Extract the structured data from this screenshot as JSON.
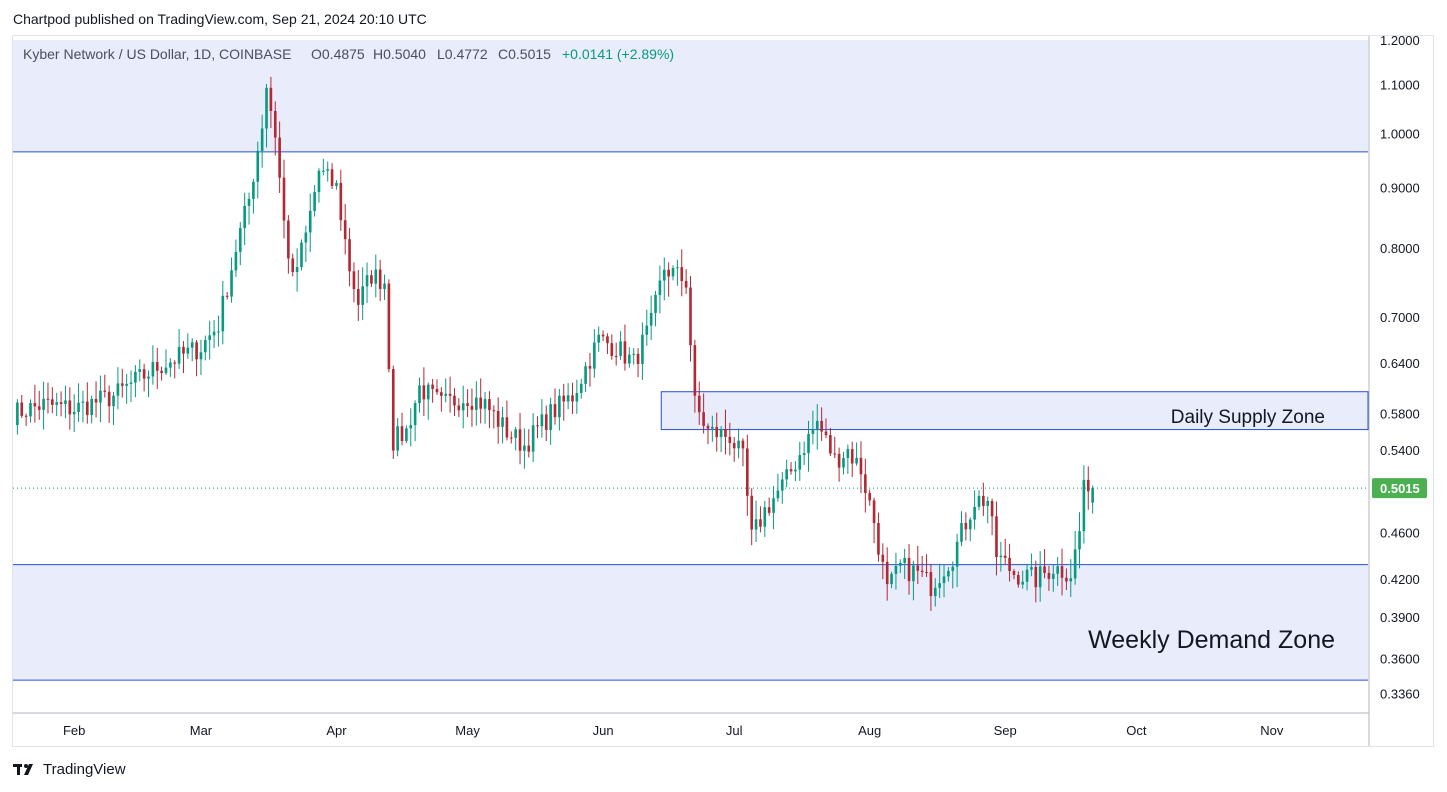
{
  "header": {
    "published": "Chartpod published on TradingView.com, Sep 21, 2024 20:10 UTC"
  },
  "legend": {
    "symbol": "Kyber Network / US Dollar, 1D, COINBASE",
    "open": "O0.4875",
    "high": "H0.5040",
    "low": "L0.4772",
    "close": "C0.5015",
    "change": "+0.0141 (+2.89%)"
  },
  "footer": {
    "brand": "TradingView"
  },
  "colors": {
    "up": "#089981",
    "down": "#b22833",
    "zone_fill": "#e8ecfb",
    "zone_line": "#2a4fd6",
    "price_tag": "#4caf50",
    "axis_text": "#131722"
  },
  "chart_data": {
    "type": "candlestick",
    "title": "Kyber Network / US Dollar, 1D, COINBASE",
    "scale": "log",
    "ylim": [
      0.33,
      1.2
    ],
    "y_ticks": [
      "1.2000",
      "1.1000",
      "1.0000",
      "0.9000",
      "0.8000",
      "0.7000",
      "0.6400",
      "0.5800",
      "0.5400",
      "0.4600",
      "0.4200",
      "0.3900",
      "0.3600",
      "0.3360"
    ],
    "x_ticks": [
      "Feb",
      "Mar",
      "Apr",
      "May",
      "Jun",
      "Jul",
      "Aug",
      "Sep",
      "Oct",
      "Nov"
    ],
    "x_range": [
      "2024-01-18",
      "2024-11-23"
    ],
    "last_price": "0.5015",
    "last_price_value": 0.5015,
    "zones": [
      {
        "label": "",
        "top": 1.2,
        "bottom": 0.965
      },
      {
        "label": "Daily Supply Zone",
        "top": 0.605,
        "bottom": 0.562,
        "start": "2024-06-15"
      },
      {
        "label": "Weekly Demand Zone",
        "top": 0.432,
        "bottom": 0.345
      }
    ],
    "anchors": [
      [
        "2024-01-18",
        0.58
      ],
      [
        "2024-01-25",
        0.59
      ],
      [
        "2024-02-01",
        0.585
      ],
      [
        "2024-02-10",
        0.6
      ],
      [
        "2024-02-20",
        0.635
      ],
      [
        "2024-03-01",
        0.66
      ],
      [
        "2024-03-05",
        0.69
      ],
      [
        "2024-03-09",
        0.8
      ],
      [
        "2024-03-12",
        0.88
      ],
      [
        "2024-03-15",
        1.02
      ],
      [
        "2024-03-16",
        1.1
      ],
      [
        "2024-03-18",
        1.0
      ],
      [
        "2024-03-20",
        0.84
      ],
      [
        "2024-03-22",
        0.75
      ],
      [
        "2024-03-25",
        0.82
      ],
      [
        "2024-03-28",
        0.93
      ],
      [
        "2024-04-01",
        0.9
      ],
      [
        "2024-04-04",
        0.77
      ],
      [
        "2024-04-06",
        0.72
      ],
      [
        "2024-04-09",
        0.76
      ],
      [
        "2024-04-12",
        0.75
      ],
      [
        "2024-04-14",
        0.55
      ],
      [
        "2024-04-17",
        0.56
      ],
      [
        "2024-04-20",
        0.61
      ],
      [
        "2024-04-25",
        0.59
      ],
      [
        "2024-05-01",
        0.6
      ],
      [
        "2024-05-05",
        0.59
      ],
      [
        "2024-05-10",
        0.56
      ],
      [
        "2024-05-14",
        0.545
      ],
      [
        "2024-05-20",
        0.58
      ],
      [
        "2024-05-25",
        0.6
      ],
      [
        "2024-05-31",
        0.67
      ],
      [
        "2024-06-04",
        0.66
      ],
      [
        "2024-06-08",
        0.64
      ],
      [
        "2024-06-12",
        0.69
      ],
      [
        "2024-06-15",
        0.77
      ],
      [
        "2024-06-20",
        0.75
      ],
      [
        "2024-06-22",
        0.59
      ],
      [
        "2024-06-25",
        0.56
      ],
      [
        "2024-06-30",
        0.555
      ],
      [
        "2024-07-03",
        0.53
      ],
      [
        "2024-07-05",
        0.455
      ],
      [
        "2024-07-08",
        0.48
      ],
      [
        "2024-07-13",
        0.51
      ],
      [
        "2024-07-17",
        0.545
      ],
      [
        "2024-07-20",
        0.57
      ],
      [
        "2024-07-24",
        0.53
      ],
      [
        "2024-07-27",
        0.54
      ],
      [
        "2024-07-30",
        0.52
      ],
      [
        "2024-08-02",
        0.47
      ],
      [
        "2024-08-05",
        0.41
      ],
      [
        "2024-08-08",
        0.43
      ],
      [
        "2024-08-12",
        0.425
      ],
      [
        "2024-08-15",
        0.415
      ],
      [
        "2024-08-20",
        0.44
      ],
      [
        "2024-08-25",
        0.49
      ],
      [
        "2024-08-28",
        0.49
      ],
      [
        "2024-08-30",
        0.44
      ],
      [
        "2024-09-03",
        0.425
      ],
      [
        "2024-09-08",
        0.42
      ],
      [
        "2024-09-12",
        0.43
      ],
      [
        "2024-09-16",
        0.425
      ],
      [
        "2024-09-18",
        0.46
      ],
      [
        "2024-09-19",
        0.51
      ],
      [
        "2024-09-20",
        0.4875
      ],
      [
        "2024-09-21",
        0.5015
      ]
    ],
    "last_candle": {
      "date": "2024-09-21",
      "open": 0.4875,
      "high": 0.504,
      "low": 0.4772,
      "close": 0.5015
    }
  }
}
